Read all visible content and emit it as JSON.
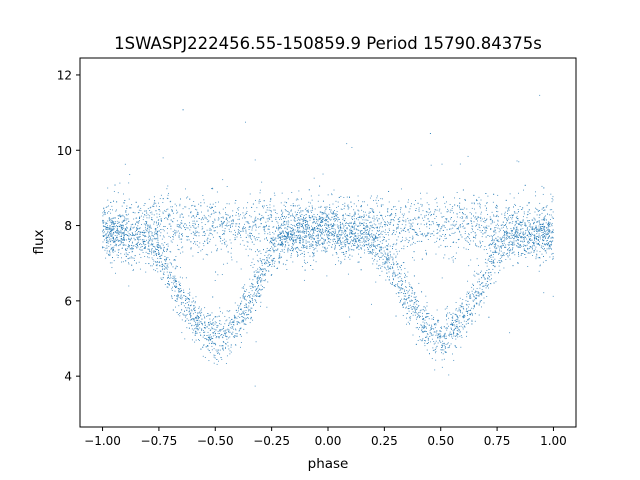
{
  "chart_data": {
    "type": "scatter",
    "title": "1SWASPJ222456.55-150859.9 Period 15790.84375s",
    "xlabel": "phase",
    "ylabel": "flux",
    "xlim": [
      -1.1,
      1.1
    ],
    "ylim": [
      2.65,
      12.45
    ],
    "xticks": [
      {
        "value": -1.0,
        "label": "−1.00"
      },
      {
        "value": -0.75,
        "label": "−0.75"
      },
      {
        "value": -0.5,
        "label": "−0.50"
      },
      {
        "value": -0.25,
        "label": "−0.25"
      },
      {
        "value": 0.0,
        "label": "0.00"
      },
      {
        "value": 0.25,
        "label": "0.25"
      },
      {
        "value": 0.5,
        "label": "0.50"
      },
      {
        "value": 0.75,
        "label": "0.75"
      },
      {
        "value": 1.0,
        "label": "1.00"
      }
    ],
    "yticks": [
      {
        "value": 4,
        "label": "4"
      },
      {
        "value": 6,
        "label": "6"
      },
      {
        "value": 8,
        "label": "8"
      },
      {
        "value": 10,
        "label": "10"
      },
      {
        "value": 12,
        "label": "12"
      }
    ],
    "grid": false,
    "legend": "none",
    "marker_color": "#1f77b4",
    "series": [
      {
        "x": [
          -1.0,
          -0.9,
          -0.8,
          -0.75,
          -0.7,
          -0.65,
          -0.6,
          -0.55,
          -0.5,
          -0.45,
          -0.4,
          -0.35,
          -0.3,
          -0.25,
          -0.2,
          -0.1,
          0.0,
          0.1,
          0.2,
          0.25,
          0.3,
          0.35,
          0.4,
          0.45,
          0.5,
          0.55,
          0.6,
          0.65,
          0.7,
          0.75,
          0.8,
          0.9,
          1.0
        ],
        "y": [
          7.7,
          7.7,
          7.6,
          7.3,
          6.7,
          6.1,
          5.6,
          5.2,
          5.0,
          5.1,
          5.5,
          6.0,
          6.6,
          7.3,
          7.7,
          7.8,
          7.8,
          7.7,
          7.6,
          7.3,
          6.7,
          6.1,
          5.6,
          5.2,
          5.0,
          5.1,
          5.5,
          6.0,
          6.6,
          7.3,
          7.7,
          7.7,
          7.7
        ],
        "band_y": [
          8.0,
          8.0,
          8.0,
          8.0,
          8.0,
          8.0,
          8.0,
          8.0,
          8.0,
          8.0,
          8.0,
          8.0,
          8.0,
          8.0,
          8.0,
          8.0,
          8.0,
          8.0,
          8.0,
          8.0,
          8.0,
          8.0,
          8.0,
          8.0,
          8.0,
          8.0,
          8.0,
          8.0,
          8.0,
          8.0,
          8.0,
          8.0,
          8.0
        ]
      }
    ]
  }
}
